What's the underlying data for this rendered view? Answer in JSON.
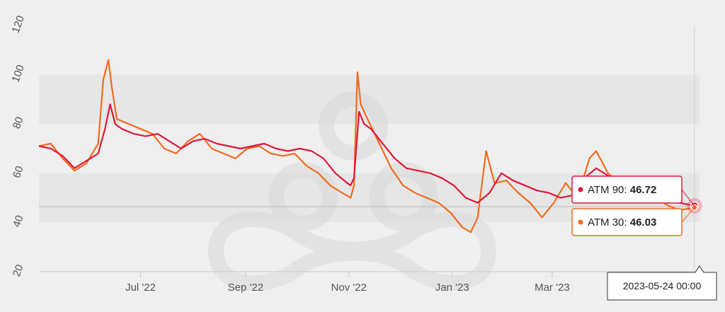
{
  "chart_data": {
    "type": "line",
    "y_ticks": [
      "20",
      "40",
      "60",
      "80",
      "100",
      "120"
    ],
    "ylim": [
      20,
      120
    ],
    "x_ticks": [
      {
        "label": "Jul '22",
        "date": "2022-07-01"
      },
      {
        "label": "Sep '22",
        "date": "2022-09-01"
      },
      {
        "label": "Nov '22",
        "date": "2022-11-01"
      },
      {
        "label": "Jan '23",
        "date": "2023-01-01"
      },
      {
        "label": "Mar '23",
        "date": "2023-03-01"
      }
    ],
    "xlim": [
      "2022-05-02",
      "2023-05-27"
    ],
    "crosshair_y": 46.4,
    "series": [
      {
        "name": "ATM 90",
        "color": "#e0173c",
        "points": [
          [
            "2022-05-02",
            71
          ],
          [
            "2022-05-09",
            70
          ],
          [
            "2022-05-16",
            67
          ],
          [
            "2022-05-23",
            62
          ],
          [
            "2022-05-30",
            65
          ],
          [
            "2022-06-06",
            68
          ],
          [
            "2022-06-10",
            78
          ],
          [
            "2022-06-13",
            88
          ],
          [
            "2022-06-16",
            80
          ],
          [
            "2022-06-20",
            78
          ],
          [
            "2022-06-27",
            76
          ],
          [
            "2022-07-04",
            75
          ],
          [
            "2022-07-11",
            76
          ],
          [
            "2022-07-18",
            73
          ],
          [
            "2022-07-25",
            70
          ],
          [
            "2022-08-01",
            73
          ],
          [
            "2022-08-08",
            74
          ],
          [
            "2022-08-15",
            72
          ],
          [
            "2022-08-22",
            71
          ],
          [
            "2022-08-29",
            70
          ],
          [
            "2022-09-05",
            71
          ],
          [
            "2022-09-12",
            72
          ],
          [
            "2022-09-19",
            70
          ],
          [
            "2022-09-26",
            69
          ],
          [
            "2022-10-03",
            70
          ],
          [
            "2022-10-10",
            69
          ],
          [
            "2022-10-17",
            66
          ],
          [
            "2022-10-24",
            60
          ],
          [
            "2022-10-31",
            56
          ],
          [
            "2022-11-02",
            55
          ],
          [
            "2022-11-04",
            58
          ],
          [
            "2022-11-07",
            85
          ],
          [
            "2022-11-10",
            80
          ],
          [
            "2022-11-14",
            78
          ],
          [
            "2022-11-21",
            72
          ],
          [
            "2022-11-28",
            66
          ],
          [
            "2022-12-05",
            62
          ],
          [
            "2022-12-12",
            61
          ],
          [
            "2022-12-19",
            60
          ],
          [
            "2022-12-26",
            58
          ],
          [
            "2023-01-02",
            55
          ],
          [
            "2023-01-09",
            50
          ],
          [
            "2023-01-16",
            48
          ],
          [
            "2023-01-23",
            52
          ],
          [
            "2023-01-30",
            60
          ],
          [
            "2023-02-06",
            57
          ],
          [
            "2023-02-13",
            55
          ],
          [
            "2023-02-20",
            53
          ],
          [
            "2023-02-27",
            52
          ],
          [
            "2023-03-06",
            50
          ],
          [
            "2023-03-13",
            51
          ],
          [
            "2023-03-20",
            58
          ],
          [
            "2023-03-27",
            62
          ],
          [
            "2023-04-03",
            59
          ],
          [
            "2023-04-10",
            57
          ],
          [
            "2023-04-17",
            56
          ],
          [
            "2023-04-24",
            54
          ],
          [
            "2023-05-01",
            52
          ],
          [
            "2023-05-08",
            51
          ],
          [
            "2023-05-15",
            48
          ],
          [
            "2023-05-24",
            46.72
          ]
        ]
      },
      {
        "name": "ATM 30",
        "color": "#f26b1d",
        "points": [
          [
            "2022-05-02",
            71
          ],
          [
            "2022-05-09",
            72
          ],
          [
            "2022-05-16",
            66
          ],
          [
            "2022-05-23",
            61
          ],
          [
            "2022-05-30",
            64
          ],
          [
            "2022-06-06",
            72
          ],
          [
            "2022-06-09",
            98
          ],
          [
            "2022-06-12",
            106
          ],
          [
            "2022-06-14",
            95
          ],
          [
            "2022-06-17",
            82
          ],
          [
            "2022-06-24",
            80
          ],
          [
            "2022-07-01",
            78
          ],
          [
            "2022-07-08",
            76
          ],
          [
            "2022-07-15",
            70
          ],
          [
            "2022-07-22",
            68
          ],
          [
            "2022-07-29",
            73
          ],
          [
            "2022-08-05",
            76
          ],
          [
            "2022-08-12",
            70
          ],
          [
            "2022-08-19",
            68
          ],
          [
            "2022-08-26",
            66
          ],
          [
            "2022-09-02",
            70
          ],
          [
            "2022-09-09",
            71
          ],
          [
            "2022-09-16",
            68
          ],
          [
            "2022-09-23",
            67
          ],
          [
            "2022-09-30",
            68
          ],
          [
            "2022-10-07",
            63
          ],
          [
            "2022-10-14",
            60
          ],
          [
            "2022-10-21",
            55
          ],
          [
            "2022-10-28",
            52
          ],
          [
            "2022-11-02",
            50
          ],
          [
            "2022-11-04",
            55
          ],
          [
            "2022-11-06",
            101
          ],
          [
            "2022-11-08",
            88
          ],
          [
            "2022-11-12",
            82
          ],
          [
            "2022-11-19",
            72
          ],
          [
            "2022-11-26",
            62
          ],
          [
            "2022-12-03",
            55
          ],
          [
            "2022-12-10",
            52
          ],
          [
            "2022-12-17",
            50
          ],
          [
            "2022-12-24",
            48
          ],
          [
            "2022-12-31",
            44
          ],
          [
            "2023-01-07",
            38
          ],
          [
            "2023-01-12",
            36
          ],
          [
            "2023-01-16",
            42
          ],
          [
            "2023-01-21",
            69
          ],
          [
            "2023-01-26",
            56
          ],
          [
            "2023-02-02",
            57
          ],
          [
            "2023-02-09",
            52
          ],
          [
            "2023-02-16",
            48
          ],
          [
            "2023-02-23",
            42
          ],
          [
            "2023-03-02",
            48
          ],
          [
            "2023-03-09",
            56
          ],
          [
            "2023-03-16",
            50
          ],
          [
            "2023-03-23",
            66
          ],
          [
            "2023-03-27",
            69
          ],
          [
            "2023-04-03",
            60
          ],
          [
            "2023-04-10",
            56
          ],
          [
            "2023-04-17",
            54
          ],
          [
            "2023-04-24",
            49
          ],
          [
            "2023-05-01",
            50
          ],
          [
            "2023-05-08",
            47
          ],
          [
            "2023-05-15",
            45
          ],
          [
            "2023-05-24",
            46.03
          ]
        ]
      }
    ],
    "tooltip": {
      "date": "2023-05-24 00:00",
      "atm90": {
        "label": "ATM 90: ",
        "value": "46.72"
      },
      "atm30": {
        "label": "ATM 30: ",
        "value": "46.03"
      }
    }
  }
}
